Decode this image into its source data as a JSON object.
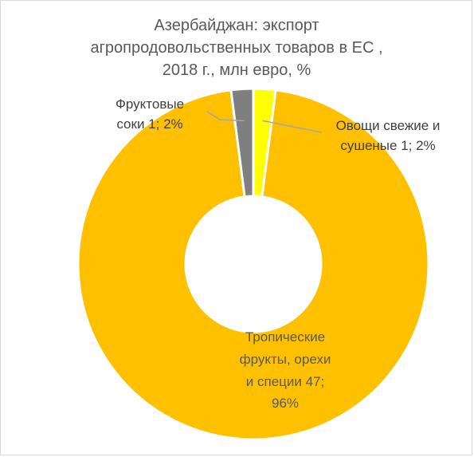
{
  "chart_data": {
    "type": "pie",
    "donut": true,
    "title_lines": [
      "Азербайджан: экспорт",
      "агропродовольственных товаров в ЕС ,",
      "2018 г., млн евро, %"
    ],
    "unit": "млн евро",
    "slices": [
      {
        "name": "Овощи свежие и сушеные",
        "value": 1,
        "percent": 2,
        "color": "#ffff00",
        "label_lines": [
          "Овощи свежие и",
          "сушеные 1; 2%"
        ]
      },
      {
        "name": "Тропические фрукты, орехи и специи",
        "value": 47,
        "percent": 96,
        "color": "#ffc000",
        "label_lines": [
          "Тропические",
          "фрукты, орехи",
          "и специи 47;",
          "96%"
        ]
      },
      {
        "name": "Фруктовые соки",
        "value": 1,
        "percent": 2,
        "color": "#7f7f7f",
        "label_lines": [
          "Фруктовые",
          "соки 1; 2%"
        ]
      }
    ],
    "legend": "none",
    "leader_line_color": "#a6a6a6",
    "border_color": "#ffffff"
  }
}
